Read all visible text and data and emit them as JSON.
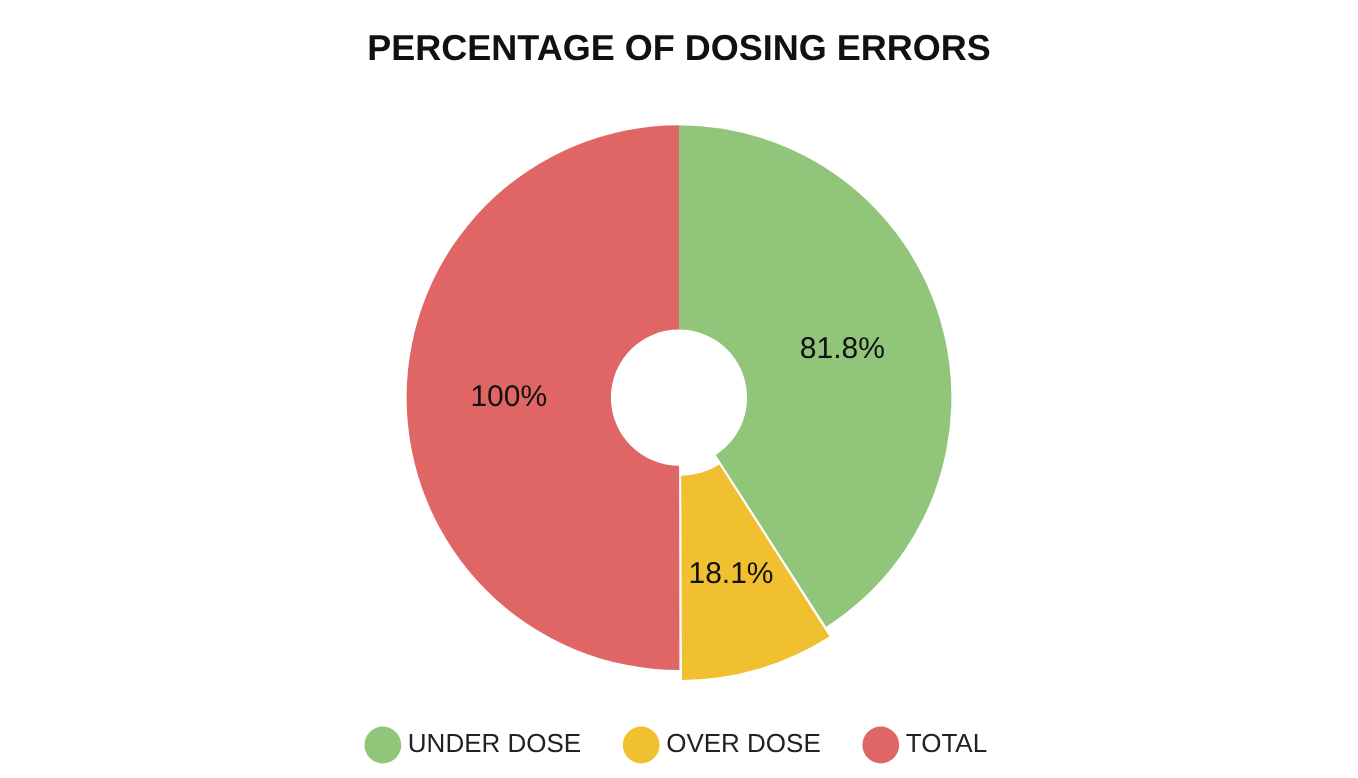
{
  "chart_data": {
    "type": "donut",
    "title": "PERCENTAGE OF DOSING ERRORS",
    "categories": [
      "UNDER DOSE",
      "OVER DOSE",
      "TOTAL"
    ],
    "values": [
      81.8,
      18.1,
      100
    ],
    "colors": [
      "#90c57a",
      "#f0c030",
      "#e06666"
    ],
    "value_labels": [
      "81.8%",
      "18.1%",
      "100%"
    ],
    "legend": "bottom"
  }
}
